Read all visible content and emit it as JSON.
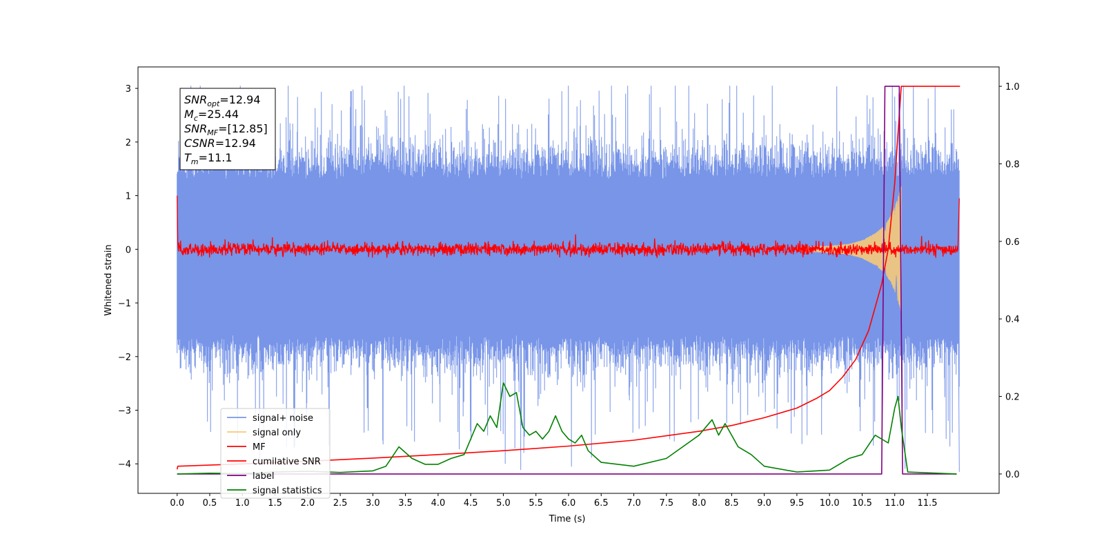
{
  "chart_data": {
    "type": "line",
    "title": "",
    "xlabel": "Time (s)",
    "ylabel": "Whitened strain",
    "xlim": [
      -0.6,
      12.6
    ],
    "ylim": [
      -4.55,
      3.4
    ],
    "y2lim": [
      -0.05,
      1.05
    ],
    "x_ticks": [
      0.0,
      0.5,
      1.0,
      1.5,
      2.0,
      2.5,
      3.0,
      3.5,
      4.0,
      4.5,
      5.0,
      5.5,
      6.0,
      6.5,
      7.0,
      7.5,
      8.0,
      8.5,
      9.0,
      9.5,
      10.0,
      10.5,
      11.0,
      11.5
    ],
    "x_tick_labels": [
      "0.0",
      "0.5",
      "1.0",
      "1.5",
      "2.0",
      "2.5",
      "3.0",
      "3.5",
      "4.0",
      "4.5",
      "5.0",
      "5.5",
      "6.0",
      "6.5",
      "7.0",
      "7.5",
      "8.0",
      "8.5",
      "9.0",
      "9.5",
      "10.0",
      "10.5",
      "11.0",
      "11.5"
    ],
    "y_ticks": [
      3,
      2,
      1,
      0,
      -1,
      -2,
      -3,
      -4
    ],
    "y_tick_labels": [
      "3",
      "2",
      "1",
      "0",
      "−1",
      "−2",
      "−3",
      "−4"
    ],
    "y2_ticks": [
      1.0,
      0.8,
      0.6,
      0.4,
      0.2,
      0.0
    ],
    "y2_tick_labels": [
      "1.0",
      "0.8",
      "0.6",
      "0.4",
      "0.2",
      "0.0"
    ],
    "grid": false,
    "legend_position": "lower-left",
    "annotation": {
      "position": "upper-left",
      "lines": [
        {
          "base": "SNR",
          "sub": "opt",
          "value": "=12.94"
        },
        {
          "base": "M",
          "sub": "c",
          "value": "=25.44"
        },
        {
          "base": "SNR",
          "sub": "MF",
          "value": "=[12.85]"
        },
        {
          "base": "CSNR",
          "sub": "",
          "value": "=12.94"
        },
        {
          "base": "T",
          "sub": "m",
          "value": "=11.1"
        }
      ]
    },
    "series": [
      {
        "name": "signal+ noise",
        "axis": "left",
        "color": "#7895e8",
        "style": "noise-band",
        "x_range": [
          0.0,
          11.99
        ],
        "envelope_upper": 1.3,
        "envelope_lower": -1.6,
        "peak_max": 3.05,
        "peak_min": -4.15
      },
      {
        "name": "signal only",
        "axis": "left",
        "color": "#f5c97a",
        "style": "chirp",
        "x": [
          9.5,
          10.0,
          10.3,
          10.5,
          10.7,
          10.85,
          10.95,
          11.02,
          11.08,
          11.1
        ],
        "amplitude": [
          0.03,
          0.06,
          0.1,
          0.17,
          0.3,
          0.45,
          0.65,
          0.85,
          1.1,
          1.2
        ]
      },
      {
        "name": "MF",
        "axis": "left",
        "color": "#ff0000",
        "style": "noise-line",
        "x_range": [
          0.0,
          11.99
        ],
        "baseline": 0.0,
        "spread": 0.08,
        "start_value": 1.0,
        "end_value": 0.95
      },
      {
        "name": "cumilative SNR",
        "axis": "right",
        "color": "#ff0000",
        "x": [
          0.0,
          0.01,
          1.0,
          2.0,
          3.0,
          4.0,
          5.0,
          6.0,
          7.0,
          8.0,
          8.5,
          9.0,
          9.5,
          9.8,
          10.0,
          10.2,
          10.4,
          10.6,
          10.8,
          10.9,
          11.0,
          11.05,
          11.1,
          11.2,
          12.0
        ],
        "values": [
          0.012,
          0.02,
          0.026,
          0.033,
          0.041,
          0.05,
          0.06,
          0.072,
          0.087,
          0.11,
          0.125,
          0.145,
          0.17,
          0.195,
          0.215,
          0.25,
          0.295,
          0.37,
          0.49,
          0.58,
          0.75,
          0.88,
          1.0,
          1.0,
          1.0
        ]
      },
      {
        "name": "label",
        "axis": "right",
        "color": "#800080",
        "x": [
          0.0,
          10.8,
          10.85,
          11.07,
          11.12,
          11.95
        ],
        "values": [
          0.0,
          0.0,
          1.0,
          1.0,
          0.0,
          0.0
        ]
      },
      {
        "name": "signal statistics",
        "axis": "right",
        "color": "#008000",
        "x": [
          0.0,
          0.5,
          1.0,
          1.5,
          2.0,
          2.5,
          3.0,
          3.2,
          3.4,
          3.6,
          3.8,
          4.0,
          4.2,
          4.4,
          4.6,
          4.7,
          4.8,
          4.9,
          5.0,
          5.1,
          5.2,
          5.3,
          5.4,
          5.5,
          5.6,
          5.7,
          5.8,
          5.9,
          6.0,
          6.1,
          6.2,
          6.3,
          6.5,
          7.0,
          7.5,
          8.0,
          8.2,
          8.3,
          8.4,
          8.6,
          8.8,
          9.0,
          9.5,
          10.0,
          10.3,
          10.5,
          10.7,
          10.9,
          11.0,
          11.05,
          11.1,
          11.2,
          11.95
        ],
        "values": [
          0.0,
          0.002,
          0.001,
          0.005,
          0.007,
          0.004,
          0.008,
          0.02,
          0.07,
          0.04,
          0.025,
          0.025,
          0.04,
          0.05,
          0.13,
          0.11,
          0.15,
          0.12,
          0.235,
          0.2,
          0.21,
          0.12,
          0.1,
          0.11,
          0.09,
          0.11,
          0.15,
          0.11,
          0.09,
          0.08,
          0.1,
          0.06,
          0.03,
          0.02,
          0.04,
          0.1,
          0.14,
          0.1,
          0.13,
          0.07,
          0.05,
          0.02,
          0.005,
          0.01,
          0.04,
          0.05,
          0.1,
          0.08,
          0.17,
          0.2,
          0.12,
          0.005,
          0.0
        ]
      }
    ]
  }
}
